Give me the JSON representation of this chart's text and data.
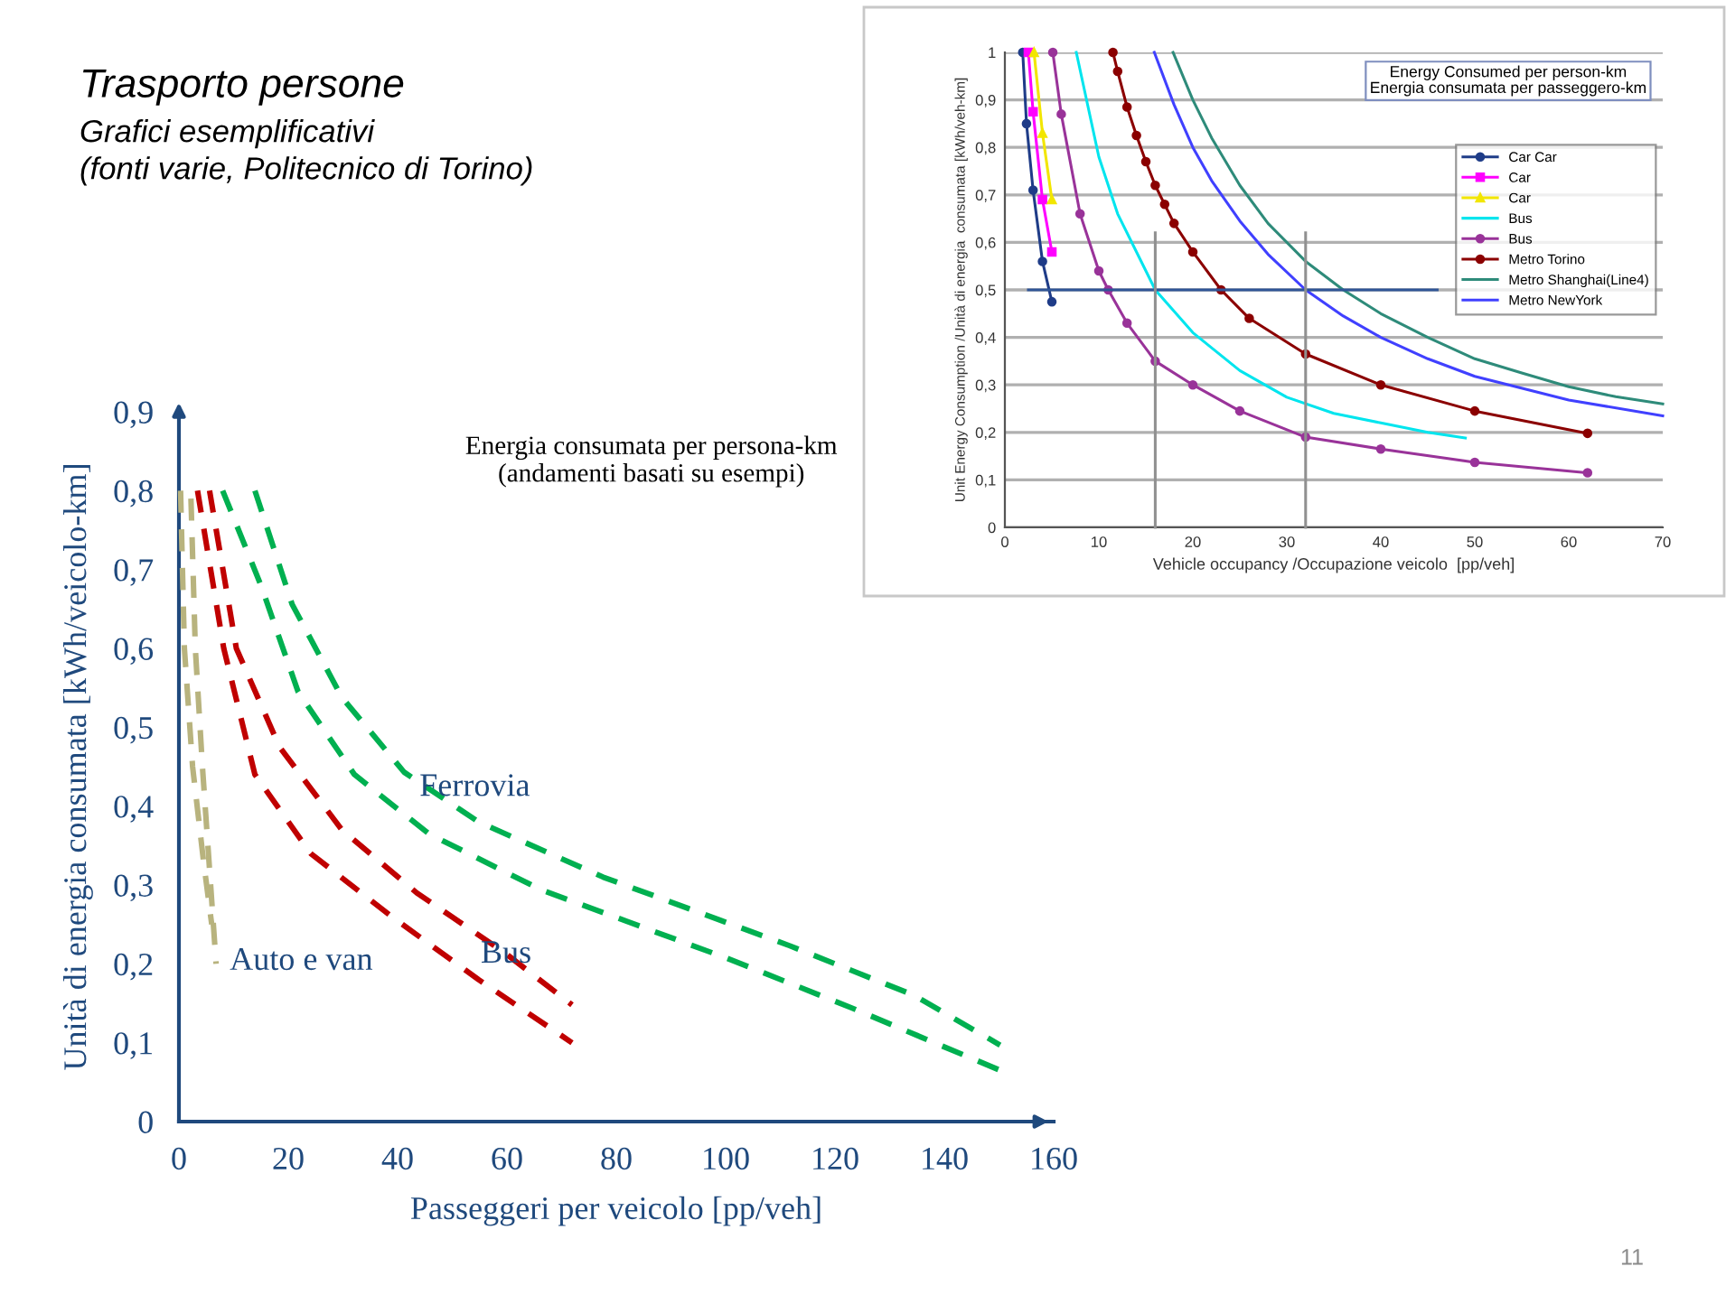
{
  "chart_data": [
    {
      "type": "line",
      "title": "Trasporto persone",
      "subtitle": "Grafici esemplificativi\n(fonti varie, Politecnico di Torino)",
      "xlabel": "Passeggeri per veicolo [pp/veh]",
      "ylabel": "Unità di energia consumata [kWh/veicolo-km]",
      "xlim": [
        0,
        160
      ],
      "xticks": [
        0,
        20,
        40,
        60,
        80,
        100,
        120,
        140,
        160
      ],
      "ylim": [
        0,
        0.9
      ],
      "yticks": [
        0,
        {
          "value": 0.1,
          "label": "0,1"
        },
        {
          "value": 0.2,
          "label": "0,2"
        },
        {
          "value": 0.3,
          "label": "0,3"
        },
        {
          "value": 0.4,
          "label": "0,4"
        },
        {
          "value": 0.5,
          "label": "0,5"
        },
        {
          "value": 0.6,
          "label": "0,6"
        },
        {
          "value": 0.7,
          "label": "0,7"
        },
        {
          "value": 0.8,
          "label": "0,8"
        },
        {
          "value": 0.9,
          "label": "0,9"
        }
      ],
      "line_style": "dashed",
      "marker": "none",
      "series": [
        {
          "color": "#b8b37e",
          "x": [
            0.3,
            1,
            2.5,
            4.5,
            6
          ],
          "values": [
            0.8,
            0.6,
            0.45,
            0.33,
            0.25
          ]
        },
        {
          "color": "#b8b37e",
          "x": [
            2.2,
            3,
            4.3,
            5.5,
            6.8
          ],
          "values": [
            0.79,
            0.6,
            0.45,
            0.33,
            0.2
          ]
        },
        {
          "color": "#c00000",
          "x": [
            3.4,
            8.2,
            13.9,
            24.1,
            38.9,
            54.8,
            71.9
          ],
          "values": [
            0.8,
            0.6,
            0.44,
            0.34,
            0.26,
            0.18,
            0.1
          ]
        },
        {
          "color": "#c00000",
          "x": [
            5.6,
            10.5,
            18.4,
            29.8,
            43.5,
            59.4,
            71.9
          ],
          "values": [
            0.8,
            0.6,
            0.475,
            0.37,
            0.29,
            0.215,
            0.148
          ]
        },
        {
          "color": "#00b050",
          "x": [
            8,
            15,
            21.8,
            32.1,
            45.7,
            66.2,
            100.3,
            123.1,
            150.2
          ],
          "values": [
            0.8,
            0.68,
            0.545,
            0.44,
            0.365,
            0.294,
            0.207,
            0.144,
            0.065
          ]
        },
        {
          "color": "#00b050",
          "x": [
            13.9,
            20.7,
            29.8,
            41.2,
            54.8,
            77.6,
            111.7,
            134.5,
            150.2
          ],
          "values": [
            0.8,
            0.656,
            0.538,
            0.443,
            0.38,
            0.31,
            0.223,
            0.16,
            0.097
          ]
        }
      ],
      "annotations": [
        "Auto e van",
        "Bus",
        "Ferrovia",
        "Energia consumata per persona-km\n(andamenti basati su esempi)",
        "11"
      ]
    },
    {
      "type": "line",
      "title": "Energy Consumed per person-km\nEnergia consumata per passeggero-km",
      "xlabel": "Vehicle occupancy /Occupazione veicolo  [pp/veh]",
      "ylabel": "Unit Energy Consumption /Unità di energia  consumata [kWh/veh-km]",
      "xlim": [
        0,
        70
      ],
      "xticks": [
        0,
        10,
        20,
        30,
        40,
        50,
        60,
        70
      ],
      "ylim": [
        0,
        1
      ],
      "yticks": [
        0,
        {
          "value": 0.1,
          "label": "0,1"
        },
        {
          "value": 0.2,
          "label": "0,2"
        },
        {
          "value": 0.3,
          "label": "0,3"
        },
        {
          "value": 0.4,
          "label": "0,4"
        },
        {
          "value": 0.5,
          "label": "0,5"
        },
        {
          "value": 0.6,
          "label": "0,6"
        },
        {
          "value": 0.7,
          "label": "0,7"
        },
        {
          "value": 0.8,
          "label": "0,8"
        },
        {
          "value": 0.9,
          "label": "0,9"
        },
        1
      ],
      "grid": "y",
      "legend": "top right",
      "line_style": "solid",
      "series": [
        {
          "name": "Car Car",
          "color": "#1f3c88",
          "marker": "circle",
          "x": [
            1.9,
            2.3,
            3,
            4,
            5
          ],
          "values": [
            1.0,
            0.85,
            0.71,
            0.56,
            0.475
          ]
        },
        {
          "name": "Car",
          "color": "#ff00ff",
          "marker": "square",
          "x": [
            2.5,
            3,
            4,
            5
          ],
          "values": [
            1.0,
            0.875,
            0.69,
            0.58
          ]
        },
        {
          "name": "Car",
          "color": "#f2e600",
          "marker": "triangle",
          "x": [
            3.1,
            4,
            5
          ],
          "values": [
            1.0,
            0.83,
            0.69
          ]
        },
        {
          "name": "Bus",
          "color": "#00e5ee",
          "marker": "none",
          "x": [
            7.6,
            10,
            12,
            16,
            20,
            25,
            30,
            35,
            40,
            45,
            49
          ],
          "values": [
            1.0,
            0.78,
            0.66,
            0.5,
            0.41,
            0.33,
            0.274,
            0.24,
            0.22,
            0.2,
            0.188
          ]
        },
        {
          "name": "Bus",
          "color": "#993399",
          "marker": "circle",
          "x": [
            5.1,
            6,
            8,
            10,
            11,
            13,
            16,
            20,
            25,
            32,
            40,
            50,
            62
          ],
          "values": [
            1.0,
            0.87,
            0.66,
            0.54,
            0.5,
            0.43,
            0.35,
            0.3,
            0.245,
            0.19,
            0.165,
            0.137,
            0.115
          ]
        },
        {
          "name": "Metro Torino",
          "color": "#8b0000",
          "marker": "circle",
          "x": [
            11.5,
            12,
            13,
            14,
            15,
            16,
            17,
            18,
            20,
            23,
            26,
            32,
            40,
            50,
            62
          ],
          "values": [
            1.0,
            0.96,
            0.885,
            0.825,
            0.77,
            0.72,
            0.68,
            0.64,
            0.58,
            0.5,
            0.44,
            0.365,
            0.3,
            0.245,
            0.198
          ]
        },
        {
          "name": "Metro Shanghai(Line4)",
          "color": "#2e8b7a",
          "marker": "none",
          "x": [
            17.9,
            20,
            22,
            25,
            28,
            32,
            36,
            40,
            45,
            50,
            55,
            60,
            65,
            70
          ],
          "values": [
            1.0,
            0.9,
            0.82,
            0.72,
            0.64,
            0.56,
            0.5,
            0.45,
            0.4,
            0.355,
            0.325,
            0.296,
            0.275,
            0.26
          ]
        },
        {
          "name": "Metro NewYork",
          "color": "#4040ff",
          "marker": "none",
          "x": [
            15.9,
            18,
            20,
            22,
            25,
            28,
            32,
            36,
            40,
            45,
            50,
            60,
            70
          ],
          "values": [
            1.0,
            0.89,
            0.8,
            0.73,
            0.645,
            0.575,
            0.5,
            0.445,
            0.4,
            0.355,
            0.318,
            0.268,
            0.235
          ]
        },
        {
          "color": "#2f5597",
          "marker": "none",
          "x": [
            2.5,
            46
          ],
          "values": [
            0.5,
            0.5
          ]
        },
        {
          "color": "#909090",
          "marker": "none",
          "x": [
            16,
            16
          ],
          "values": [
            0,
            0.62
          ]
        },
        {
          "color": "#909090",
          "marker": "none",
          "x": [
            32,
            32
          ],
          "values": [
            0,
            0.62
          ]
        }
      ]
    }
  ]
}
